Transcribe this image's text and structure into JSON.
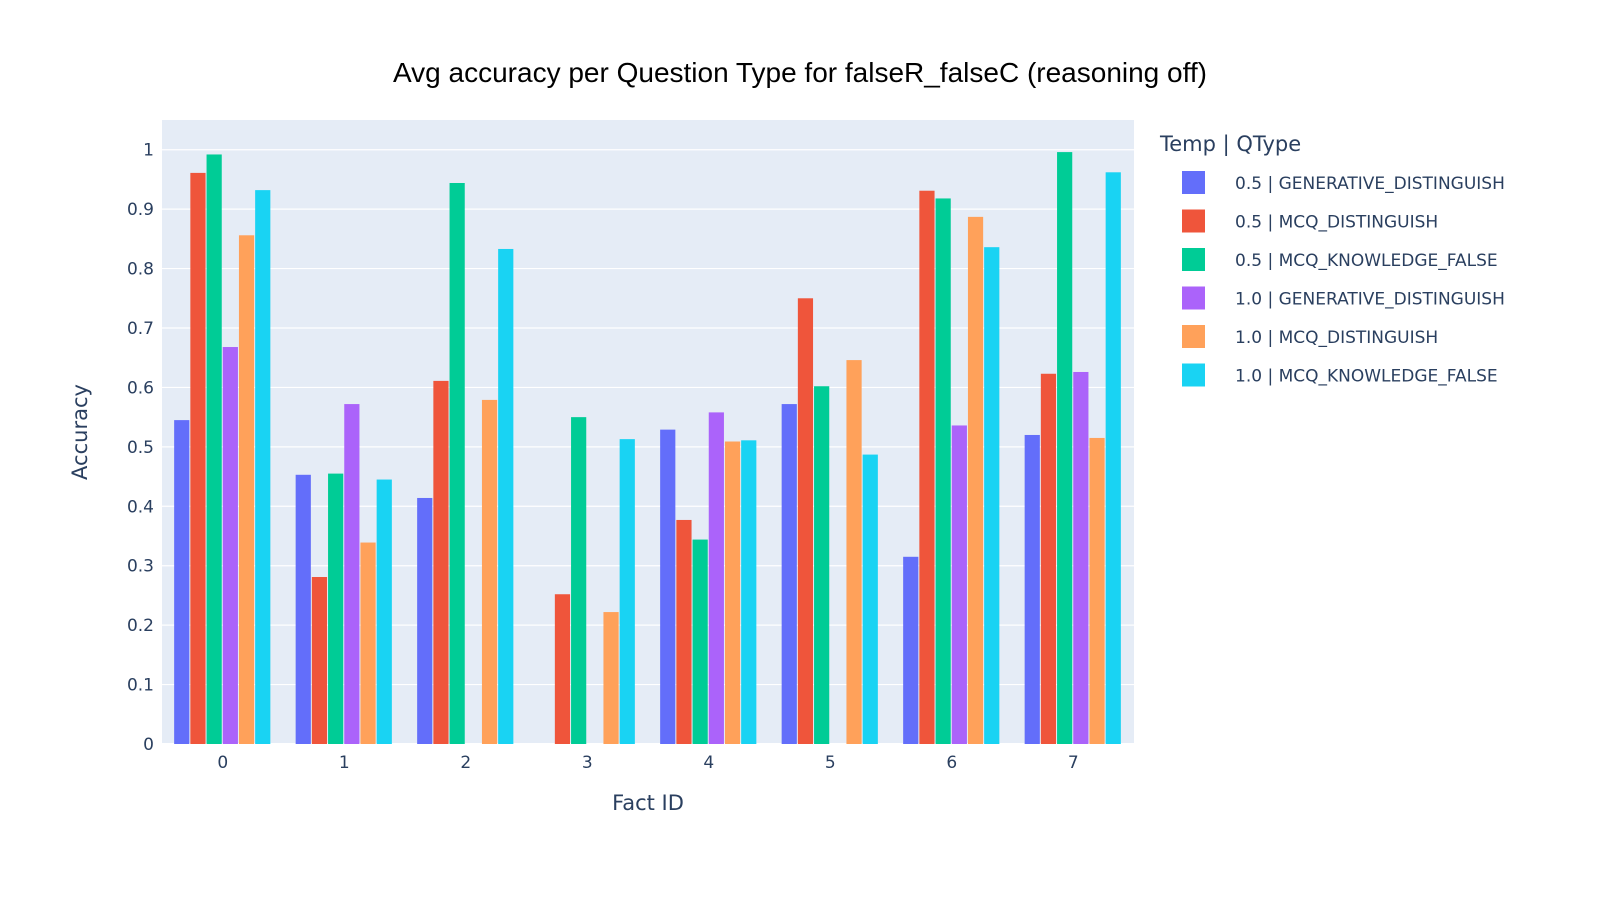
{
  "chart_data": {
    "type": "bar",
    "title": "Avg accuracy per Question Type for falseR_falseC (reasoning off)",
    "xlabel": "Fact ID",
    "ylabel": "Accuracy",
    "categories": [
      "0",
      "1",
      "2",
      "3",
      "4",
      "5",
      "6",
      "7"
    ],
    "ylim": [
      0,
      1.05
    ],
    "yticks": [
      "0",
      "0.1",
      "0.2",
      "0.3",
      "0.4",
      "0.5",
      "0.6",
      "0.7",
      "0.8",
      "0.9",
      "1"
    ],
    "grid": true,
    "legend_title": "Temp | QType",
    "legend_position": "right",
    "plot_background": "#e5ecf6",
    "series": [
      {
        "name": "0.5 | GENERATIVE_DISTINGUISH",
        "color": "#636efa",
        "values": [
          0.545,
          0.453,
          0.414,
          0,
          0.529,
          0.572,
          0.315,
          0.52
        ]
      },
      {
        "name": "0.5 | MCQ_DISTINGUISH",
        "color": "#ef553b",
        "values": [
          0.961,
          0.281,
          0.611,
          0.252,
          0.377,
          0.75,
          0.931,
          0.623
        ]
      },
      {
        "name": "0.5 | MCQ_KNOWLEDGE_FALSE",
        "color": "#00cc96",
        "values": [
          0.992,
          0.455,
          0.944,
          0.55,
          0.344,
          0.602,
          0.918,
          0.996
        ]
      },
      {
        "name": "1.0 | GENERATIVE_DISTINGUISH",
        "color": "#ab63fa",
        "values": [
          0.668,
          0.572,
          0,
          0,
          0.558,
          0,
          0.536,
          0.626
        ]
      },
      {
        "name": "1.0 | MCQ_DISTINGUISH",
        "color": "#ffa15a",
        "values": [
          0.856,
          0.339,
          0.579,
          0.222,
          0.509,
          0.646,
          0.887,
          0.515
        ]
      },
      {
        "name": "1.0 | MCQ_KNOWLEDGE_FALSE",
        "color": "#19d3f3",
        "values": [
          0.932,
          0.445,
          0.833,
          0.513,
          0.511,
          0.487,
          0.836,
          0.962
        ]
      }
    ]
  }
}
